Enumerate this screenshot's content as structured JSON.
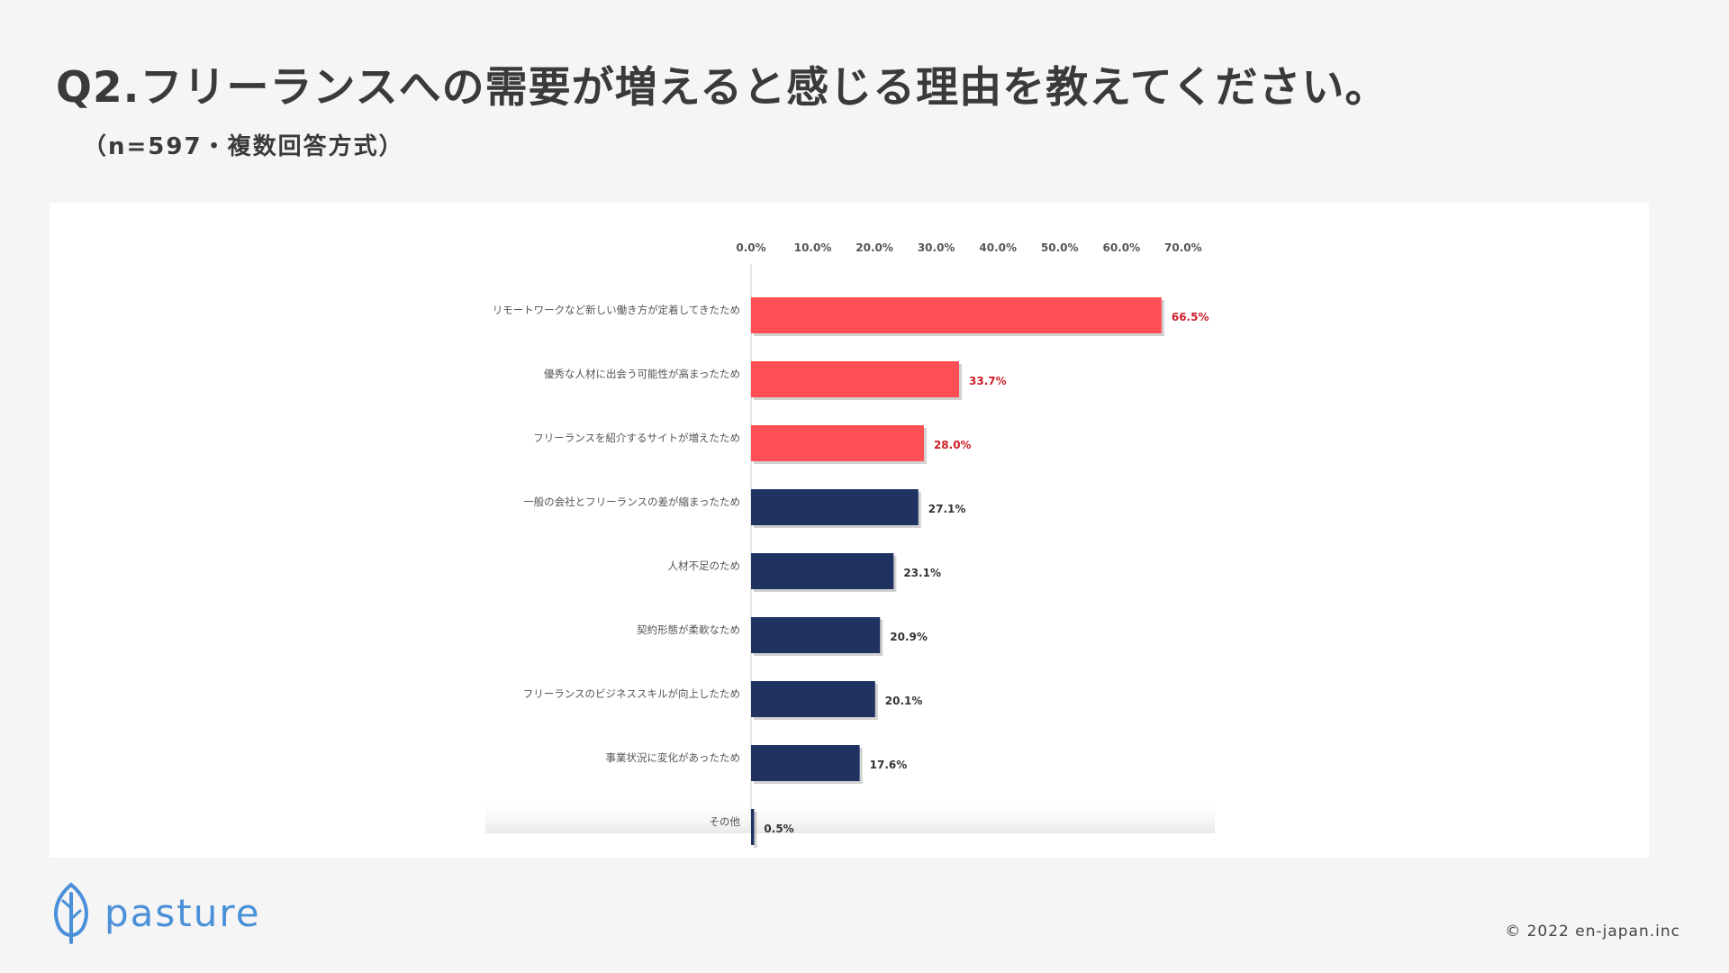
{
  "header": {
    "title": "Q2.フリーランスへの需要が増えると感じる理由を教えてください。",
    "subtitle": "（n=597・複数回答方式）"
  },
  "brand": {
    "name": "pasture",
    "color": "#4a90d9",
    "icon": "leaf-icon"
  },
  "footer": {
    "copyright": "© 2022 en-japan.inc"
  },
  "colors": {
    "highlight": "#ff4f55",
    "default": "#1f3262",
    "highlight_label": "#cc1f2a",
    "default_label": "#333333"
  },
  "chart_data": {
    "type": "bar",
    "orientation": "horizontal",
    "categories": [
      "リモートワークなど新しい働き方が定着してきたため",
      "優秀な人材に出会う可能性が高まったため",
      "フリーランスを紹介するサイトが増えたため",
      "一般の会社とフリーランスの差が縮まったため",
      "人材不足のため",
      "契約形態が柔軟なため",
      "フリーランスのビジネススキルが向上したため",
      "事業状況に変化があったため",
      "その他"
    ],
    "values": [
      66.5,
      33.7,
      28.0,
      27.1,
      23.1,
      20.9,
      20.1,
      17.6,
      0.5
    ],
    "value_labels": [
      "66.5%",
      "33.7%",
      "28.0%",
      "27.1%",
      "23.1%",
      "20.9%",
      "20.1%",
      "17.6%",
      "0.5%"
    ],
    "highlighted": [
      true,
      true,
      true,
      false,
      false,
      false,
      false,
      false,
      false
    ],
    "x_ticks": [
      "0.0%",
      "10.0%",
      "20.0%",
      "30.0%",
      "40.0%",
      "50.0%",
      "60.0%",
      "70.0%"
    ],
    "xlim": [
      0,
      70
    ],
    "axis_position": "top",
    "grid": false
  }
}
